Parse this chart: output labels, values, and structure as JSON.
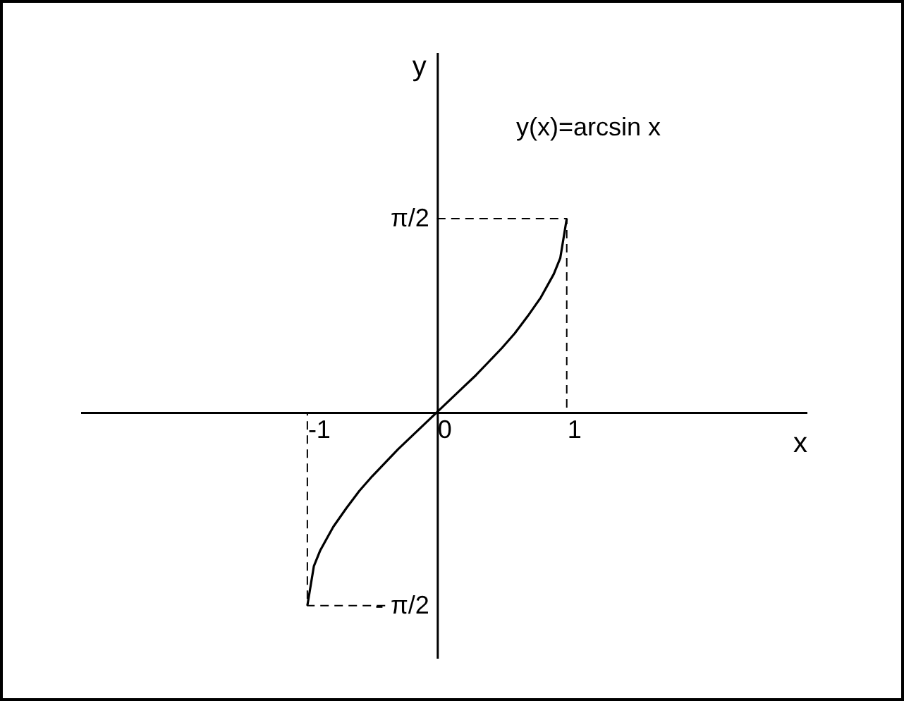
{
  "chart_data": {
    "type": "line",
    "xlabel": "x",
    "ylabel": "y",
    "annotations": [
      "y(x)=arcsin x"
    ],
    "xlim": [
      -2.75,
      2.85
    ],
    "ylim": [
      -2.0,
      2.92
    ],
    "xticks": [
      -1,
      0,
      1
    ],
    "yticks": [
      {
        "value": 1.57,
        "label": "π/2"
      },
      {
        "value": -1.57,
        "label": "- π/2"
      }
    ],
    "series": [
      {
        "color": "#000000",
        "x": [
          -1,
          -0.95,
          -0.9,
          -0.8,
          -0.7,
          -0.6,
          -0.5,
          -0.4,
          -0.3,
          -0.2,
          -0.1,
          0,
          0.1,
          0.2,
          0.3,
          0.4,
          0.5,
          0.6,
          0.7,
          0.8,
          0.9,
          0.95,
          1
        ],
        "values": [
          -1.57,
          -1.25,
          -1.12,
          -0.93,
          -0.78,
          -0.64,
          -0.52,
          -0.41,
          -0.3,
          -0.2,
          -0.1,
          0,
          0.1,
          0.2,
          0.3,
          0.41,
          0.52,
          0.64,
          0.78,
          0.93,
          1.12,
          1.25,
          1.57
        ]
      },
      {
        "color": "#000000",
        "line_style": "dashed",
        "x": [
          0,
          1,
          1
        ],
        "values": [
          1.57,
          1.57,
          0
        ]
      },
      {
        "color": "#000000",
        "line_style": "dashed",
        "x": [
          -0.4,
          -1,
          -1
        ],
        "values": [
          -1.57,
          -1.57,
          0
        ]
      }
    ],
    "grid": false,
    "marker": "none",
    "line_style": "solid"
  }
}
